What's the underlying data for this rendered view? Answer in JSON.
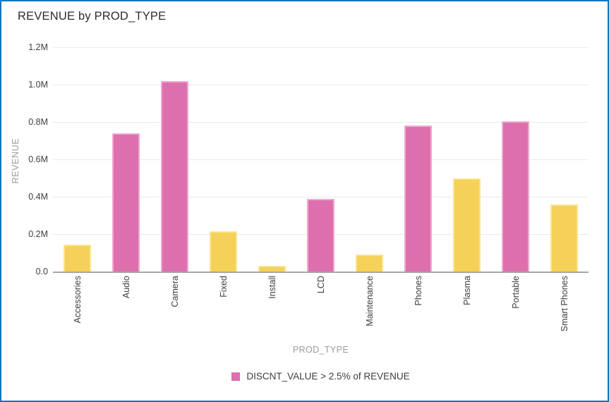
{
  "frame": {
    "border_color": "#1176BC",
    "background": "#FFFFFF"
  },
  "chart_data": {
    "type": "bar",
    "title": "REVENUE by PROD_TYPE",
    "xlabel": "PROD_TYPE",
    "ylabel": "REVENUE",
    "ylim": [
      0,
      1200000
    ],
    "grid": true,
    "legend_position": "bottom",
    "y_ticks": [
      {
        "value": 1200000,
        "label": "1.2M"
      },
      {
        "value": 1000000,
        "label": "1.0M"
      },
      {
        "value": 800000,
        "label": "0.8M"
      },
      {
        "value": 600000,
        "label": "0.6M"
      },
      {
        "value": 400000,
        "label": "0.4M"
      },
      {
        "value": 200000,
        "label": "0.2M"
      },
      {
        "value": 0,
        "label": "0.0"
      }
    ],
    "categories": [
      "Accessories",
      "Audio",
      "Camera",
      "Fixed",
      "Install",
      "LCD",
      "Maintenance",
      "Phones",
      "Plasma",
      "Portable",
      "Smart Phones"
    ],
    "values": [
      145000,
      740000,
      1020000,
      215000,
      30000,
      390000,
      90000,
      780000,
      500000,
      805000,
      360000
    ],
    "highlighted": [
      false,
      true,
      true,
      false,
      false,
      true,
      false,
      true,
      false,
      true,
      false
    ],
    "colors": {
      "highlight_fill": "#DE6FAD",
      "highlight_edge": "#F0A9D1",
      "default_fill": "#F6D159",
      "default_edge": "#FAE48F",
      "gridline": "#EAEAEF",
      "axis_line": "#A6A6A8"
    },
    "legend": [
      {
        "label": "DISCNT_VALUE > 2.5% of REVENUE",
        "color": "#DE6FAD"
      }
    ]
  }
}
